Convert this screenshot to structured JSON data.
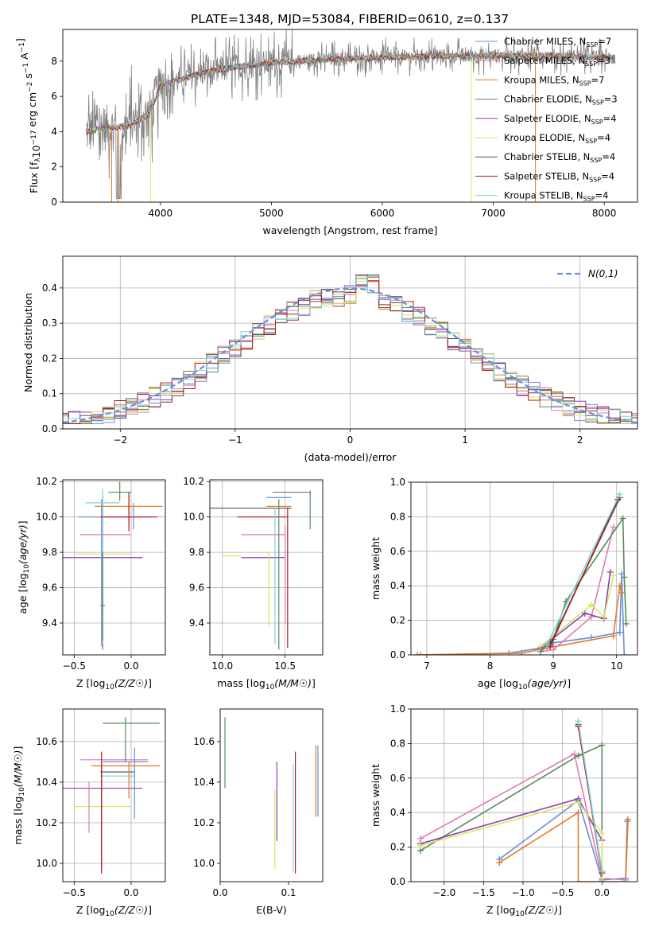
{
  "figure_title": "PLATE=1348, MJD=53084, FIBERID=0610, z=0.137",
  "legend_entries": [
    {
      "label": "Chabrier MILES, N",
      "sub": "SSP",
      "tail": "=7",
      "color": "#6a8fd8"
    },
    {
      "label": "Salpeter MILES, N",
      "sub": "SSP",
      "tail": "=3",
      "color": "#e07ab5"
    },
    {
      "label": "Kroupa MILES, N",
      "sub": "SSP",
      "tail": "=7",
      "color": "#e07a26"
    },
    {
      "label": "Chabrier ELODIE, N",
      "sub": "SSP",
      "tail": "=3",
      "color": "#5a8a5a"
    },
    {
      "label": "Salpeter ELODIE, N",
      "sub": "SSP",
      "tail": "=4",
      "color": "#8e3cb8"
    },
    {
      "label": "Kroupa ELODIE, N",
      "sub": "SSP",
      "tail": "=4",
      "color": "#d6e85a"
    },
    {
      "label": "Chabrier STELIB, N",
      "sub": "SSP",
      "tail": "=4",
      "color": "#555555"
    },
    {
      "label": "Salpeter STELIB, N",
      "sub": "SSP",
      "tail": "=4",
      "color": "#b01a1a"
    },
    {
      "label": "Kroupa STELIB, N",
      "sub": "SSP",
      "tail": "=4",
      "color": "#7fd4dc"
    }
  ],
  "chart_data": [
    {
      "id": "spectrum",
      "type": "line",
      "xlabel": "wavelength [Angstrom, rest frame]",
      "ylabel": "Flux [f",
      "ylabel_parts": [
        "Flux [f",
        "λ",
        "10",
        "−17",
        "erg cm",
        "−2",
        "s",
        "−1",
        "A",
        "−1",
        "]"
      ],
      "xlim": [
        3120,
        8300
      ],
      "ylim": [
        0,
        9.8
      ],
      "xticks": [
        4000,
        5000,
        6000,
        7000,
        8000
      ],
      "yticks": [
        0,
        2,
        4,
        6,
        8
      ],
      "grid": false,
      "legend": "top-right",
      "model_anchors": {
        "x": [
          3330,
          3500,
          3700,
          3900,
          4000,
          4300,
          4600,
          5000,
          5500,
          6000,
          6500,
          7000,
          7500,
          8100
        ],
        "y": [
          4.0,
          4.2,
          4.3,
          5.0,
          6.6,
          7.2,
          7.6,
          7.9,
          8.1,
          8.2,
          8.3,
          8.3,
          8.3,
          8.2
        ]
      }
    },
    {
      "id": "residuals",
      "type": "histogram",
      "xlabel": "(data-model)/error",
      "ylabel": "Normed distribution",
      "xlim": [
        -2.5,
        2.5
      ],
      "ylim": [
        0,
        0.49
      ],
      "xticks": [
        -2,
        -1,
        0,
        1,
        2
      ],
      "yticks": [
        0,
        0.1,
        0.2,
        0.3,
        0.4
      ],
      "grid": true,
      "legend": "top-right",
      "reference_label": "N(0,1)"
    },
    {
      "id": "age_vs_Z",
      "type": "errorbar",
      "xlabel": "Z [log",
      "ylabel": "age  [log",
      "xlim": [
        -0.6,
        0.3
      ],
      "ylim": [
        9.22,
        10.21
      ],
      "xticks": [
        -0.5,
        0.0
      ],
      "yticks": [
        9.4,
        9.6,
        9.8,
        10.0,
        10.2
      ],
      "grid": true,
      "points": [
        {
          "x": -0.25,
          "xe": [
            0.35,
            0.35
          ],
          "y": 9.77,
          "ye": [
            0.52,
            0.35
          ],
          "color": "#8e3cb8"
        },
        {
          "x": -0.25,
          "xe": [
            0.25,
            0.25
          ],
          "y": 9.79,
          "ye": [
            0.4,
            0.22
          ],
          "color": "#d6e85a"
        },
        {
          "x": -0.25,
          "xe": [
            0.2,
            0.25
          ],
          "y": 9.9,
          "ye": [
            0.45,
            0.1
          ],
          "color": "#e07ab5"
        },
        {
          "x": -0.26,
          "xe": [
            0.2,
            0.15
          ],
          "y": 10.0,
          "ye": [
            0.73,
            0.1
          ],
          "color": "#6a8fd8"
        },
        {
          "x": -0.25,
          "xe": [
            0.15,
            0.15
          ],
          "y": 10.08,
          "ye": [
            0.8,
            0.08
          ],
          "color": "#7fd4dc"
        },
        {
          "x": -0.02,
          "xe": [
            0.3,
            0.3
          ],
          "y": 10.06,
          "ye": [
            0.1,
            0.06
          ],
          "color": "#e07a26"
        },
        {
          "x": 0.02,
          "xe": [
            0.15,
            0.15
          ],
          "y": 10.0,
          "ye": [
            0.07,
            0.08
          ],
          "color": "#6a8fd8"
        },
        {
          "x": -0.02,
          "xe": [
            0.25,
            0.25
          ],
          "y": 10.0,
          "ye": [
            0.08,
            0.14
          ],
          "color": "#b01a1a"
        },
        {
          "x": -0.1,
          "xe": [
            0.1,
            0.1
          ],
          "y": 10.14,
          "ye": [
            0.05,
            0.06
          ],
          "color": "#5a8a5a"
        },
        {
          "x": -0.25,
          "xe": [
            0.02,
            0.02
          ],
          "y": 9.5,
          "ye": [
            0.2,
            0.3
          ],
          "color": "#5a8a5a"
        }
      ]
    },
    {
      "id": "age_vs_mass",
      "type": "errorbar",
      "xlabel": "mass [log",
      "ylabel": "",
      "xlim": [
        9.9,
        10.8
      ],
      "ylim": [
        9.22,
        10.21
      ],
      "xticks": [
        10.0,
        10.5
      ],
      "yticks": [
        9.4,
        9.6,
        9.8,
        10.0,
        10.2
      ],
      "grid": true,
      "points": [
        {
          "x": 10.0,
          "xe": [
            0.0,
            0.15
          ],
          "y": 9.78,
          "ye": [
            0.0,
            0.0
          ],
          "color": "#d6e85a"
        },
        {
          "x": 10.3,
          "xe": [
            0.15,
            0.2
          ],
          "y": 9.77,
          "ye": [
            0.0,
            0.0
          ],
          "color": "#8e3cb8"
        },
        {
          "x": 10.3,
          "xe": [
            0.15,
            0.2
          ],
          "y": 9.9,
          "ye": [
            0.0,
            0.0
          ],
          "color": "#e07ab5"
        },
        {
          "x": 10.32,
          "xe": [
            0.2,
            0.2
          ],
          "y": 10.0,
          "ye": [
            0.0,
            0.0
          ],
          "color": "#b01a1a"
        },
        {
          "x": 10.1,
          "xe": [
            0.2,
            0.45
          ],
          "y": 10.05,
          "ye": [
            0.0,
            0.0
          ],
          "color": "#555555"
        },
        {
          "x": 10.45,
          "xe": [
            0.1,
            0.1
          ],
          "y": 10.06,
          "ye": [
            0.0,
            0.0
          ],
          "color": "#e07a26"
        },
        {
          "x": 10.45,
          "xe": [
            0.1,
            0.1
          ],
          "y": 10.11,
          "ye": [
            0.0,
            0.0
          ],
          "color": "#6a8fd8"
        },
        {
          "x": 10.55,
          "xe": [
            0.15,
            0.15
          ],
          "y": 10.14,
          "ye": [
            0.0,
            0.0
          ],
          "color": "#5a8a5a"
        },
        {
          "x": 10.42,
          "xe": [
            0.0,
            0.0
          ],
          "y": 9.7,
          "ye": [
            0.42,
            0.35
          ],
          "color": "#7fd4dc"
        },
        {
          "x": 10.45,
          "xe": [
            0.0,
            0.0
          ],
          "y": 9.7,
          "ye": [
            0.45,
            0.4
          ],
          "color": "#5a8a5a"
        },
        {
          "x": 10.52,
          "xe": [
            0.0,
            0.0
          ],
          "y": 9.7,
          "ye": [
            0.44,
            0.35
          ],
          "color": "#b01a1a"
        },
        {
          "x": 10.5,
          "xe": [
            0.0,
            0.0
          ],
          "y": 9.65,
          "ye": [
            0.25,
            0.3
          ],
          "color": "#e07ab5"
        },
        {
          "x": 10.37,
          "xe": [
            0.0,
            0.0
          ],
          "y": 9.6,
          "ye": [
            0.22,
            0.2
          ],
          "color": "#d6e85a"
        },
        {
          "x": 10.7,
          "xe": [
            0.0,
            0.0
          ],
          "y": 10.05,
          "ye": [
            0.12,
            0.1
          ],
          "color": "#5a8a5a"
        }
      ]
    },
    {
      "id": "weight_vs_age",
      "type": "line",
      "xlabel": "age  [log",
      "ylabel": "mass weight",
      "xlim": [
        6.75,
        10.33
      ],
      "ylim": [
        0,
        1
      ],
      "xticks": [
        7,
        8,
        9,
        10
      ],
      "yticks": [
        0,
        0.2,
        0.4,
        0.6,
        0.8,
        1.0
      ],
      "grid": true,
      "series": [
        {
          "color": "#6a8fd8",
          "x": [
            6.9,
            8.3,
            8.8,
            9.0,
            9.6,
            10.05,
            10.08,
            10.12
          ],
          "y": [
            0.0,
            0.01,
            0.04,
            0.07,
            0.1,
            0.13,
            0.47,
            0.0
          ]
        },
        {
          "color": "#e07a26",
          "x": [
            6.85,
            8.5,
            8.9,
            9.95,
            10.05,
            10.08
          ],
          "y": [
            0.0,
            0.01,
            0.04,
            0.11,
            0.4,
            0.36
          ]
        },
        {
          "color": "#e07ab5",
          "x": [
            8.8,
            9.0,
            9.6,
            9.95
          ],
          "y": [
            0.02,
            0.03,
            0.22,
            0.74
          ]
        },
        {
          "color": "#5a8a5a",
          "x": [
            8.8,
            9.0,
            9.2,
            10.1,
            10.12,
            10.15
          ],
          "y": [
            0.02,
            0.09,
            0.31,
            0.79,
            0.45,
            0.18
          ]
        },
        {
          "color": "#8e3cb8",
          "x": [
            8.8,
            9.5,
            9.8,
            9.9
          ],
          "y": [
            0.04,
            0.24,
            0.21,
            0.48
          ]
        },
        {
          "color": "#d6e85a",
          "x": [
            8.8,
            9.6,
            9.8,
            9.95
          ],
          "y": [
            0.05,
            0.29,
            0.22,
            0.46
          ]
        },
        {
          "color": "#555555",
          "x": [
            8.95,
            10.05
          ],
          "y": [
            0.06,
            0.91
          ]
        },
        {
          "color": "#b01a1a",
          "x": [
            8.95,
            10.02
          ],
          "y": [
            0.05,
            0.9
          ]
        },
        {
          "color": "#7fd4dc",
          "x": [
            8.9,
            10.05
          ],
          "y": [
            0.06,
            0.93
          ]
        }
      ]
    },
    {
      "id": "mass_vs_Z",
      "type": "errorbar",
      "xlabel": "Z [log",
      "ylabel": "mass [log",
      "xlim": [
        -0.6,
        0.3
      ],
      "ylim": [
        9.91,
        10.76
      ],
      "xticks": [
        -0.5,
        0.0
      ],
      "yticks": [
        10.0,
        10.2,
        10.4,
        10.6
      ],
      "grid": true,
      "points": [
        {
          "x": -0.25,
          "xe": [
            0.35,
            0.35
          ],
          "y": 10.37,
          "ye": [
            0.0,
            0.0
          ],
          "color": "#8e3cb8"
        },
        {
          "x": -0.25,
          "xe": [
            0.25,
            0.25
          ],
          "y": 10.28,
          "ye": [
            0.0,
            0.0
          ],
          "color": "#d6e85a"
        },
        {
          "x": -0.15,
          "xe": [
            0.3,
            0.3
          ],
          "y": 10.51,
          "ye": [
            0.0,
            0.0
          ],
          "color": "#e07ab5"
        },
        {
          "x": -0.05,
          "xe": [
            0.2,
            0.2
          ],
          "y": 10.5,
          "ye": [
            0.0,
            0.0
          ],
          "color": "#6a8fd8"
        },
        {
          "x": -0.05,
          "xe": [
            0.3,
            0.3
          ],
          "y": 10.48,
          "ye": [
            0.0,
            0.0
          ],
          "color": "#e07a26"
        },
        {
          "x": -0.12,
          "xe": [
            0.15,
            0.15
          ],
          "y": 10.45,
          "ye": [
            0.0,
            0.0
          ],
          "color": "#555555"
        },
        {
          "x": -0.12,
          "xe": [
            0.15,
            0.15
          ],
          "y": 10.43,
          "ye": [
            0.0,
            0.0
          ],
          "color": "#7fd4dc"
        },
        {
          "x": 0.0,
          "xe": [
            0.25,
            0.25
          ],
          "y": 10.69,
          "ye": [
            0.0,
            0.0
          ],
          "color": "#5a8a5a"
        },
        {
          "x": -0.05,
          "xe": [
            0.0,
            0.0
          ],
          "y": 10.6,
          "ye": [
            0.1,
            0.12
          ],
          "color": "#5a8a5a"
        },
        {
          "x": -0.37,
          "xe": [
            0.0,
            0.0
          ],
          "y": 10.35,
          "ye": [
            0.2,
            0.05
          ],
          "color": "#e07ab5"
        },
        {
          "x": -0.26,
          "xe": [
            0.0,
            0.0
          ],
          "y": 10.3,
          "ye": [
            0.33,
            0.2
          ],
          "color": "#5a8a5a"
        },
        {
          "x": -0.26,
          "xe": [
            0.0,
            0.0
          ],
          "y": 10.3,
          "ye": [
            0.35,
            0.25
          ],
          "color": "#b01a1a"
        },
        {
          "x": -0.02,
          "xe": [
            0.0,
            0.0
          ],
          "y": 10.42,
          "ye": [
            0.1,
            0.08
          ],
          "color": "#e07a26"
        },
        {
          "x": 0.03,
          "xe": [
            0.0,
            0.0
          ],
          "y": 10.4,
          "ye": [
            0.18,
            0.17
          ],
          "color": "#6a8fd8"
        }
      ]
    },
    {
      "id": "ebv",
      "type": "errorbar",
      "xlabel": "E(B-V)",
      "ylabel": "",
      "xlim": [
        0.0,
        0.15
      ],
      "ylim": [
        9.91,
        10.76
      ],
      "xticks": [
        0.0,
        0.1
      ],
      "yticks": [
        10.0,
        10.2,
        10.4,
        10.6
      ],
      "grid": false,
      "points": [
        {
          "x": 0.007,
          "xe": [
            0.0,
            0.0
          ],
          "y": 10.54,
          "ye": [
            0.17,
            0.18
          ],
          "color": "#5a8a5a"
        },
        {
          "x": 0.08,
          "xe": [
            0.0,
            0.0
          ],
          "y": 10.16,
          "ye": [
            0.19,
            0.2
          ],
          "color": "#d6e85a"
        },
        {
          "x": 0.083,
          "xe": [
            0.0,
            0.0
          ],
          "y": 10.3,
          "ye": [
            0.19,
            0.2
          ],
          "color": "#8e3cb8"
        },
        {
          "x": 0.107,
          "xe": [
            0.0,
            0.0
          ],
          "y": 10.22,
          "ye": [
            0.26,
            0.27
          ],
          "color": "#7fd4dc"
        },
        {
          "x": 0.11,
          "xe": [
            0.0,
            0.0
          ],
          "y": 10.25,
          "ye": [
            0.3,
            0.3
          ],
          "color": "#b01a1a"
        },
        {
          "x": 0.14,
          "xe": [
            0.0,
            0.0
          ],
          "y": 10.4,
          "ye": [
            0.17,
            0.18
          ],
          "color": "#e07a26"
        },
        {
          "x": 0.143,
          "xe": [
            0.0,
            0.0
          ],
          "y": 10.4,
          "ye": [
            0.17,
            0.18
          ],
          "color": "#6a8fd8"
        }
      ]
    },
    {
      "id": "weight_vs_Z",
      "type": "line",
      "xlabel": "Z [log",
      "ylabel": "mass weight",
      "xlim": [
        -2.42,
        0.45
      ],
      "ylim": [
        0,
        1
      ],
      "xticks": [
        -2.0,
        -1.5,
        -1.0,
        -0.5,
        0.0
      ],
      "yticks": [
        0,
        0.2,
        0.4,
        0.6,
        0.8,
        1.0
      ],
      "grid": true,
      "series": [
        {
          "color": "#6a8fd8",
          "x": [
            -1.3,
            -0.3,
            0.0,
            0.3,
            0.32
          ],
          "y": [
            0.13,
            0.47,
            0.01,
            0.02,
            0.35
          ]
        },
        {
          "color": "#e07a26",
          "x": [
            -1.3,
            -0.3,
            -0.3,
            0.0,
            0.3,
            0.33
          ],
          "y": [
            0.11,
            0.4,
            0.0,
            0.0,
            0.0,
            0.36
          ]
        },
        {
          "color": "#e07ab5",
          "x": [
            -2.3,
            -0.35,
            0.0,
            0.3
          ],
          "y": [
            0.25,
            0.74,
            0.02,
            0.01
          ]
        },
        {
          "color": "#5a8a5a",
          "x": [
            -2.3,
            -0.3,
            0.0,
            0.0
          ],
          "y": [
            0.18,
            0.73,
            0.79,
            0.0
          ]
        },
        {
          "color": "#8e3cb8",
          "x": [
            -2.3,
            -0.3,
            0.0
          ],
          "y": [
            0.22,
            0.48,
            0.24
          ]
        },
        {
          "color": "#d6e85a",
          "x": [
            -2.3,
            -0.3,
            0.0,
            0.0
          ],
          "y": [
            0.21,
            0.46,
            0.28,
            0.02
          ]
        },
        {
          "color": "#555555",
          "x": [
            -0.3,
            0.0
          ],
          "y": [
            0.91,
            0.06
          ]
        },
        {
          "color": "#b01a1a",
          "x": [
            -0.3,
            0.0
          ],
          "y": [
            0.9,
            0.05
          ]
        },
        {
          "color": "#7fd4dc",
          "x": [
            -0.3,
            0.0
          ],
          "y": [
            0.93,
            0.06
          ]
        }
      ]
    }
  ]
}
